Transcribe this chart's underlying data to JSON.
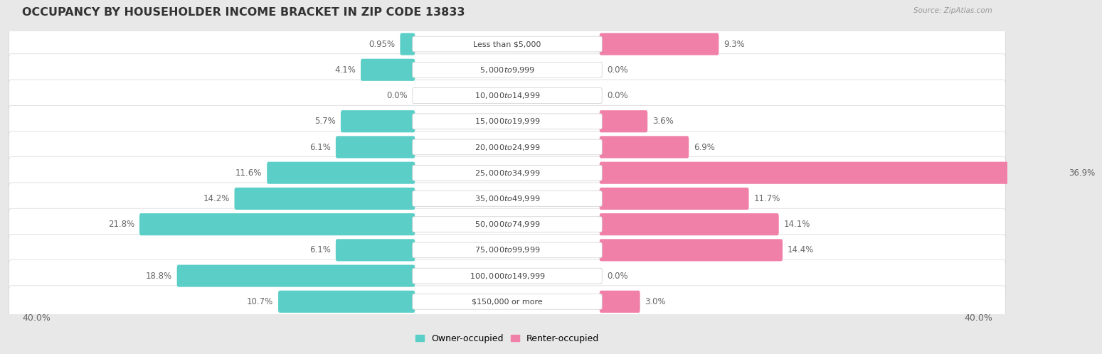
{
  "title": "OCCUPANCY BY HOUSEHOLDER INCOME BRACKET IN ZIP CODE 13833",
  "source": "Source: ZipAtlas.com",
  "categories": [
    "Less than $5,000",
    "$5,000 to $9,999",
    "$10,000 to $14,999",
    "$15,000 to $19,999",
    "$20,000 to $24,999",
    "$25,000 to $34,999",
    "$35,000 to $49,999",
    "$50,000 to $74,999",
    "$75,000 to $99,999",
    "$100,000 to $149,999",
    "$150,000 or more"
  ],
  "owner_values": [
    0.95,
    4.1,
    0.0,
    5.7,
    6.1,
    11.6,
    14.2,
    21.8,
    6.1,
    18.8,
    10.7
  ],
  "renter_values": [
    9.3,
    0.0,
    0.0,
    3.6,
    6.9,
    36.9,
    11.7,
    14.1,
    14.4,
    0.0,
    3.0
  ],
  "owner_color": "#5BCFC7",
  "renter_color": "#F080A8",
  "owner_label": "Owner-occupied",
  "renter_label": "Renter-occupied",
  "max_value": 40.0,
  "bg_color": "#e8e8e8",
  "row_bg_color": "#ffffff",
  "title_fontsize": 11.5,
  "source_fontsize": 7.5,
  "axis_label_fontsize": 9,
  "bar_label_fontsize": 8.5,
  "category_fontsize": 8,
  "legend_fontsize": 9
}
